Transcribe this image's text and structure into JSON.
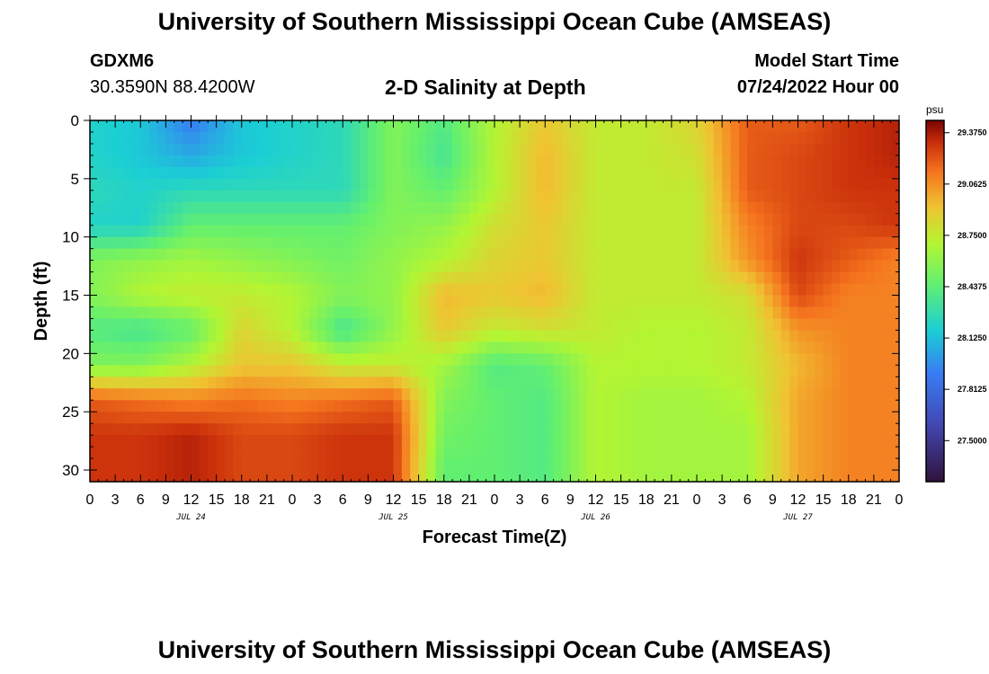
{
  "header": {
    "title": "University of Southern Mississippi Ocean Cube (AMSEAS)",
    "station_id": "GDXM6",
    "station_coords": "30.3590N  88.4200W",
    "chart_title": "2-D Salinity at Depth",
    "model_start_label": "Model Start Time",
    "model_start_value": "07/24/2022 Hour 00"
  },
  "footer": {
    "title": "University of Southern Mississippi Ocean Cube (AMSEAS)"
  },
  "chart_data": {
    "type": "heatmap",
    "title": "2-D Salinity at Depth",
    "xlabel": "Forecast Time(Z)",
    "ylabel": "Depth (ft)",
    "x_tick_labels": [
      "0",
      "3",
      "6",
      "9",
      "12",
      "15",
      "18",
      "21",
      "0",
      "3",
      "6",
      "9",
      "12",
      "15",
      "18",
      "21",
      "0",
      "3",
      "6",
      "9",
      "12",
      "15",
      "18",
      "21",
      "0",
      "3",
      "6",
      "9",
      "12",
      "15",
      "18",
      "21",
      "0"
    ],
    "x_day_labels": [
      "JUL 24",
      "JUL 25",
      "JUL 26",
      "JUL 27"
    ],
    "xlim_hours": [
      0,
      96
    ],
    "y_ticks": [
      0,
      5,
      10,
      15,
      20,
      25,
      30
    ],
    "ylim": [
      0,
      31
    ],
    "y_inverted": true,
    "colorbar": {
      "unit": "psu",
      "ticks": [
        "29.3750",
        "29.0625",
        "28.7500",
        "28.4375",
        "28.1250",
        "27.8125",
        "27.5000"
      ],
      "range": [
        27.25,
        29.45
      ]
    },
    "x_hours": [
      0,
      6,
      12,
      18,
      24,
      30,
      36,
      42,
      48,
      54,
      60,
      66,
      72,
      78,
      84,
      90,
      96
    ],
    "y_depths": [
      0,
      3,
      6,
      9,
      12,
      15,
      18,
      21,
      24,
      27,
      30
    ],
    "salinity": [
      [
        28.2,
        28.15,
        27.9,
        28.15,
        28.2,
        28.25,
        28.55,
        28.4,
        28.7,
        28.9,
        28.75,
        28.75,
        28.85,
        29.2,
        29.2,
        29.3,
        29.35
      ],
      [
        28.2,
        28.15,
        28.05,
        28.15,
        28.2,
        28.25,
        28.55,
        28.35,
        28.7,
        28.95,
        28.75,
        28.75,
        28.8,
        29.2,
        29.25,
        29.3,
        29.35
      ],
      [
        28.25,
        28.2,
        28.25,
        28.25,
        28.25,
        28.25,
        28.55,
        28.45,
        28.7,
        28.95,
        28.75,
        28.75,
        28.75,
        29.2,
        29.25,
        29.3,
        29.3
      ],
      [
        28.2,
        28.2,
        28.45,
        28.45,
        28.45,
        28.45,
        28.55,
        28.6,
        28.8,
        28.9,
        28.75,
        28.75,
        28.75,
        29.1,
        29.25,
        29.25,
        29.3
      ],
      [
        28.55,
        28.6,
        28.65,
        28.6,
        28.55,
        28.5,
        28.6,
        28.7,
        28.85,
        28.9,
        28.75,
        28.75,
        28.75,
        29.05,
        29.3,
        29.2,
        29.1
      ],
      [
        28.55,
        28.7,
        28.75,
        28.75,
        28.7,
        28.55,
        28.6,
        28.95,
        28.9,
        28.95,
        28.75,
        28.75,
        28.75,
        28.8,
        29.25,
        29.1,
        29.1
      ],
      [
        28.4,
        28.35,
        28.45,
        28.85,
        28.7,
        28.35,
        28.6,
        28.9,
        28.75,
        28.8,
        28.75,
        28.7,
        28.7,
        28.75,
        29.05,
        29.1,
        29.1
      ],
      [
        28.55,
        28.55,
        28.7,
        28.9,
        28.9,
        28.75,
        28.75,
        28.65,
        28.4,
        28.45,
        28.7,
        28.7,
        28.7,
        28.75,
        28.95,
        29.1,
        29.1
      ],
      [
        29.2,
        29.15,
        29.1,
        29.15,
        29.1,
        29.15,
        29.2,
        28.55,
        28.45,
        28.4,
        28.7,
        28.65,
        28.65,
        28.7,
        29.0,
        29.1,
        29.1
      ],
      [
        29.3,
        29.3,
        29.35,
        29.25,
        29.25,
        29.3,
        29.3,
        28.5,
        28.45,
        28.4,
        28.7,
        28.65,
        28.65,
        28.65,
        29.0,
        29.1,
        29.1
      ],
      [
        29.3,
        29.3,
        29.35,
        29.25,
        29.25,
        29.3,
        29.3,
        28.45,
        28.45,
        28.4,
        28.7,
        28.65,
        28.65,
        28.65,
        29.0,
        29.1,
        29.1
      ]
    ]
  }
}
